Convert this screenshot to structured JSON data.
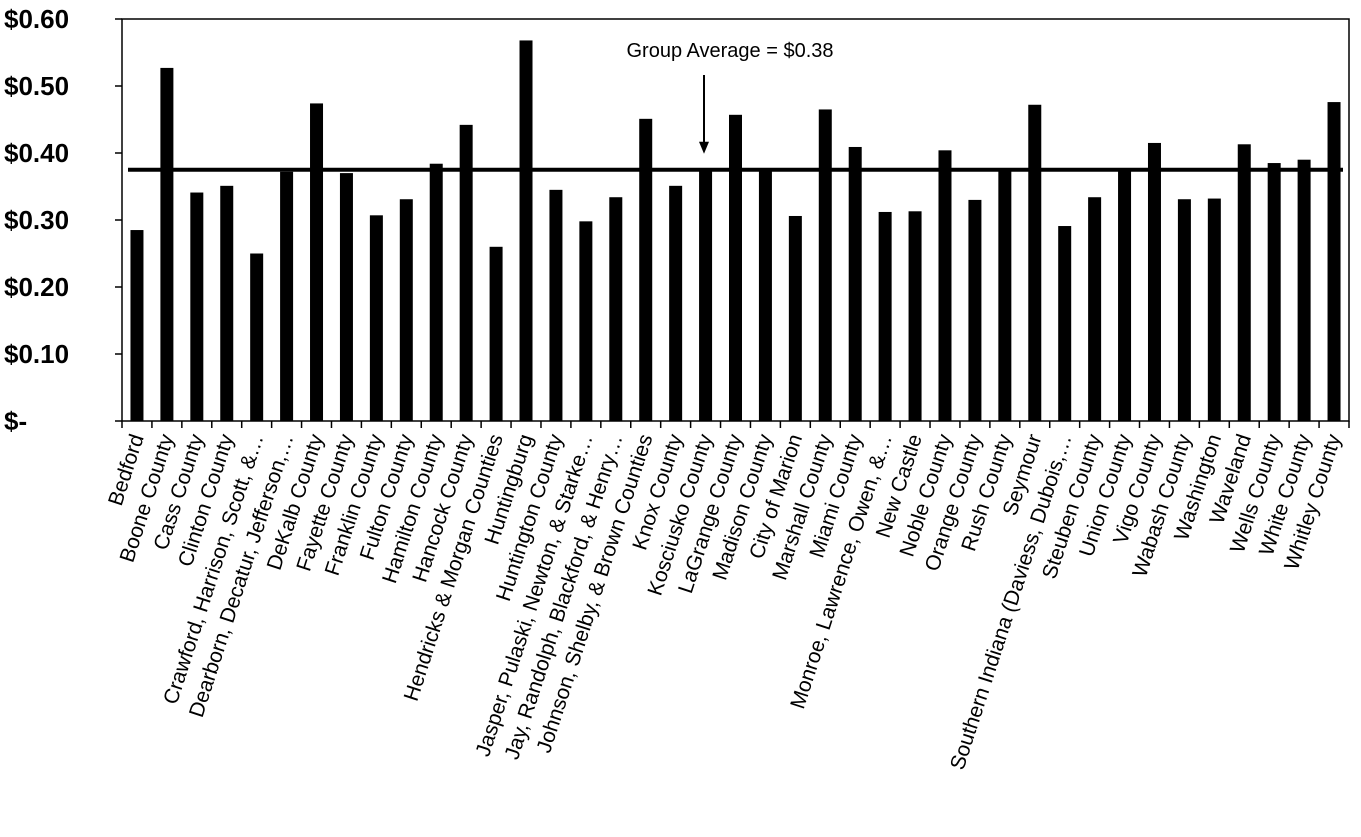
{
  "chart_data": {
    "type": "bar",
    "title": "",
    "xlabel": "",
    "ylabel": "",
    "ylim": [
      0,
      0.6
    ],
    "yticks": [
      0,
      0.1,
      0.2,
      0.3,
      0.4,
      0.5,
      0.6
    ],
    "ytick_labels": [
      "$-",
      "$0.10",
      "$0.20",
      "$0.30",
      "$0.40",
      "$0.50",
      "$0.60"
    ],
    "grid": false,
    "bar_color": "#000000",
    "categories": [
      "Bedford",
      "Boone County",
      "Cass County",
      "Clinton County",
      "Crawford, Harrison, Scott, &…",
      "Dearborn, Decatur, Jefferson,…",
      "DeKalb County",
      "Fayette County",
      "Franklin County",
      "Fulton County",
      "Hamilton County",
      "Hancock County",
      "Hendricks & Morgan Counties",
      "Huntingburg",
      "Huntington County",
      "Jasper, Pulaski, Newton, & Starke…",
      "Jay, Randolph, Blackford, & Henry…",
      "Johnson, Shelby, & Brown Counties",
      "Knox County",
      "Kosciusko County",
      "LaGrange County",
      "Madison County",
      "City of Marion",
      "Marshall County",
      "Miami County",
      "Monroe, Lawrence, Owen, &…",
      "New Castle",
      "Noble County",
      "Orange County",
      "Rush County",
      "Seymour",
      "Southern Indiana (Daviess, Dubois,…",
      "Steuben County",
      "Union County",
      "Vigo County",
      "Wabash County",
      "Washington",
      "Waveland",
      "Wells County",
      "White County",
      "Whitley County"
    ],
    "values": [
      0.285,
      0.527,
      0.341,
      0.351,
      0.25,
      0.372,
      0.474,
      0.37,
      0.307,
      0.331,
      0.384,
      0.442,
      0.26,
      0.568,
      0.345,
      0.298,
      0.334,
      0.451,
      0.351,
      0.377,
      0.457,
      0.375,
      0.306,
      0.465,
      0.409,
      0.312,
      0.313,
      0.404,
      0.33,
      0.373,
      0.472,
      0.291,
      0.334,
      0.376,
      0.415,
      0.331,
      0.332,
      0.413,
      0.385,
      0.39,
      0.476
    ],
    "reference_line": {
      "value": 0.375,
      "label": "Group Average = $0.38"
    }
  }
}
